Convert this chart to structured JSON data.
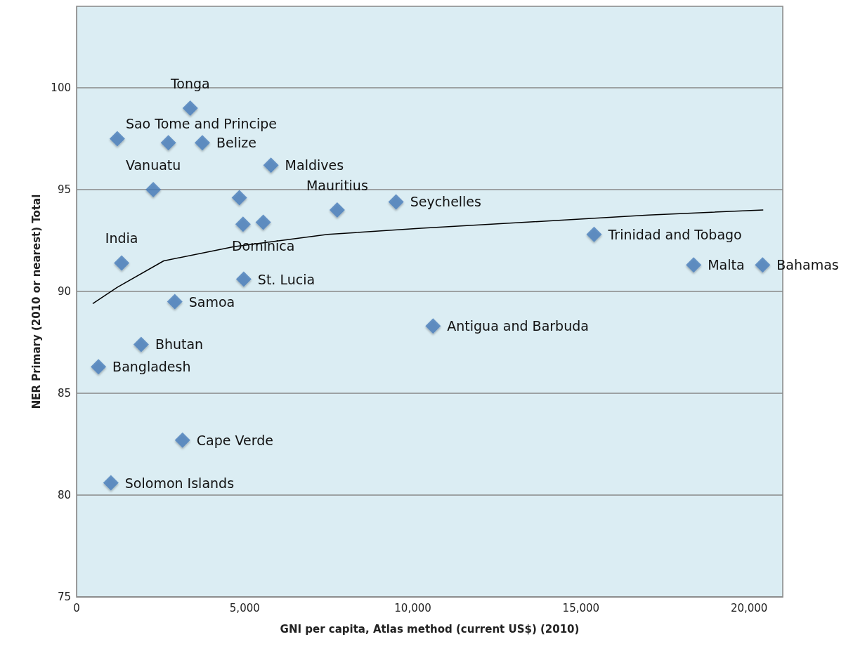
{
  "chart_data": {
    "type": "scatter",
    "xlabel": "GNI per capita, Atlas method (current US$) (2010)",
    "ylabel": "NER Primary (2010 or nearest) Total",
    "xlim": [
      0,
      21000
    ],
    "xticks": [
      0,
      {
        "value": 5000,
        "label": "5,000"
      },
      {
        "value": 10000,
        "label": "10,000"
      },
      {
        "value": 15000,
        "label": "15,000"
      },
      {
        "value": 20000,
        "label": "20,000"
      }
    ],
    "ylim": [
      75,
      104
    ],
    "yticks": [
      75,
      80,
      85,
      90,
      95,
      100
    ],
    "grid": "y",
    "marker": "diamond",
    "series": [
      {
        "type": "scatter",
        "color": "#4a7ebb",
        "x": [
          1210,
          2730,
          3380,
          3740,
          5780,
          2280,
          4840,
          7750,
          9500,
          15390,
          18350,
          20400,
          10600,
          4950,
          5550,
          1340,
          4970,
          2920,
          1920,
          650,
          3150,
          1020
        ],
        "values": [
          97.5,
          97.3,
          99.0,
          97.3,
          96.2,
          95.0,
          94.6,
          94.0,
          94.4,
          92.8,
          91.3,
          91.3,
          88.3,
          93.3,
          93.4,
          91.4,
          90.6,
          89.5,
          87.4,
          86.3,
          82.7,
          80.6
        ]
      },
      {
        "type": "line",
        "color": "#000000",
        "marker": "none",
        "line_style": "solid",
        "x": [
          480,
          1210,
          2590,
          4680,
          7470,
          10250,
          14430,
          17000,
          20420
        ],
        "values": [
          89.4,
          90.2,
          91.5,
          92.2,
          92.8,
          93.1,
          93.5,
          93.75,
          94.0
        ]
      }
    ],
    "annotations": [
      {
        "text": "Sao Tome and Principe",
        "x": 1210,
        "y": 97.5
      },
      {
        "text": "Tonga",
        "x": 3380,
        "y": 99.0
      },
      {
        "text": "Belize",
        "x": 3740,
        "y": 97.3
      },
      {
        "text": "Maldives",
        "x": 5780,
        "y": 96.2
      },
      {
        "text": "Vanuatu",
        "x": 2280,
        "y": 95.0
      },
      {
        "text": "Mauritius",
        "x": 7750,
        "y": 94.0
      },
      {
        "text": "Seychelles",
        "x": 9500,
        "y": 94.4
      },
      {
        "text": "Trinidad and Tobago",
        "x": 15390,
        "y": 92.8
      },
      {
        "text": "India",
        "x": 1340,
        "y": 91.4
      },
      {
        "text": "Dominica",
        "x": 5550,
        "y": 93.4
      },
      {
        "text": "St. Lucia",
        "x": 4970,
        "y": 90.6
      },
      {
        "text": "Samoa",
        "x": 2920,
        "y": 89.5
      },
      {
        "text": "Antigua and Barbuda",
        "x": 10600,
        "y": 88.3
      },
      {
        "text": "Bhutan",
        "x": 1920,
        "y": 87.4
      },
      {
        "text": "Bangladesh",
        "x": 650,
        "y": 86.3
      },
      {
        "text": "Cape Verde",
        "x": 3150,
        "y": 82.7
      },
      {
        "text": "Solomon Islands",
        "x": 1020,
        "y": 80.6
      },
      {
        "text": "Malta",
        "x": 18350,
        "y": 91.3
      },
      {
        "text": "Bahamas",
        "x": 20400,
        "y": 91.3
      }
    ]
  }
}
